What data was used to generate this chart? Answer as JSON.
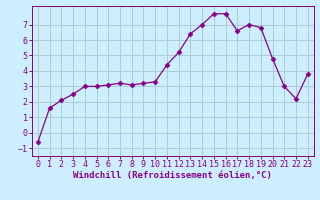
{
  "x": [
    0,
    1,
    2,
    3,
    4,
    5,
    6,
    7,
    8,
    9,
    10,
    11,
    12,
    13,
    14,
    15,
    16,
    17,
    18,
    19,
    20,
    21,
    22,
    23
  ],
  "y": [
    -0.6,
    1.6,
    2.1,
    2.5,
    3.0,
    3.0,
    3.1,
    3.2,
    3.1,
    3.2,
    3.3,
    4.4,
    5.2,
    6.4,
    7.0,
    7.7,
    7.7,
    6.6,
    7.0,
    6.8,
    4.8,
    3.0,
    2.2,
    3.8
  ],
  "line_color": "#880088",
  "marker": "D",
  "marker_size": 2.5,
  "bg_color": "#cceeff",
  "grid_color": "#aacccc",
  "xlabel": "Windchill (Refroidissement éolien,°C)",
  "xlim": [
    -0.5,
    23.5
  ],
  "ylim": [
    -1.5,
    8.2
  ],
  "yticks": [
    -1,
    0,
    1,
    2,
    3,
    4,
    5,
    6,
    7
  ],
  "xticks": [
    0,
    1,
    2,
    3,
    4,
    5,
    6,
    7,
    8,
    9,
    10,
    11,
    12,
    13,
    14,
    15,
    16,
    17,
    18,
    19,
    20,
    21,
    22,
    23
  ],
  "label_color": "#880088",
  "tick_color": "#880088",
  "label_fontsize": 6.5,
  "tick_fontsize": 6.0
}
